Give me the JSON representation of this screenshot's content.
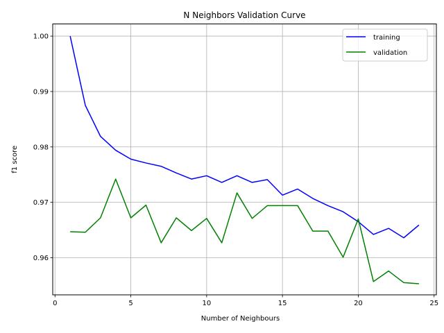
{
  "chart_data": {
    "type": "line",
    "title": "N Neighbors Validation Curve",
    "xlabel": "Number of Neighbours",
    "ylabel": "f1 score",
    "xlim": [
      -0.15,
      25.15
    ],
    "ylim": [
      0.9533,
      1.0022
    ],
    "xticks": [
      0,
      5,
      10,
      15,
      20,
      25
    ],
    "yticks": [
      0.96,
      0.97,
      0.98,
      0.99,
      1.0
    ],
    "ytick_labels": [
      "0.96",
      "0.97",
      "0.98",
      "0.99",
      "1.00"
    ],
    "grid": true,
    "legend_position": "top-right",
    "x": [
      1,
      2,
      3,
      4,
      5,
      6,
      7,
      8,
      9,
      10,
      11,
      12,
      13,
      14,
      15,
      16,
      17,
      18,
      19,
      20,
      21,
      22,
      23,
      24
    ],
    "series": [
      {
        "name": "training",
        "color": "#0000ff",
        "values": [
          1.0,
          0.9875,
          0.9819,
          0.9794,
          0.9778,
          0.9771,
          0.9765,
          0.9753,
          0.9742,
          0.9748,
          0.9736,
          0.9748,
          0.9736,
          0.9741,
          0.9713,
          0.9724,
          0.9707,
          0.9694,
          0.9683,
          0.9665,
          0.9642,
          0.9653,
          0.9636,
          0.9659
        ]
      },
      {
        "name": "validation",
        "color": "#008000",
        "values": [
          0.9647,
          0.9646,
          0.9672,
          0.9742,
          0.9672,
          0.9695,
          0.9627,
          0.9672,
          0.9649,
          0.9671,
          0.9627,
          0.9717,
          0.9671,
          0.9694,
          0.9694,
          0.9694,
          0.9648,
          0.9648,
          0.9601,
          0.967,
          0.9557,
          0.9576,
          0.9555,
          0.9553
        ]
      }
    ]
  }
}
